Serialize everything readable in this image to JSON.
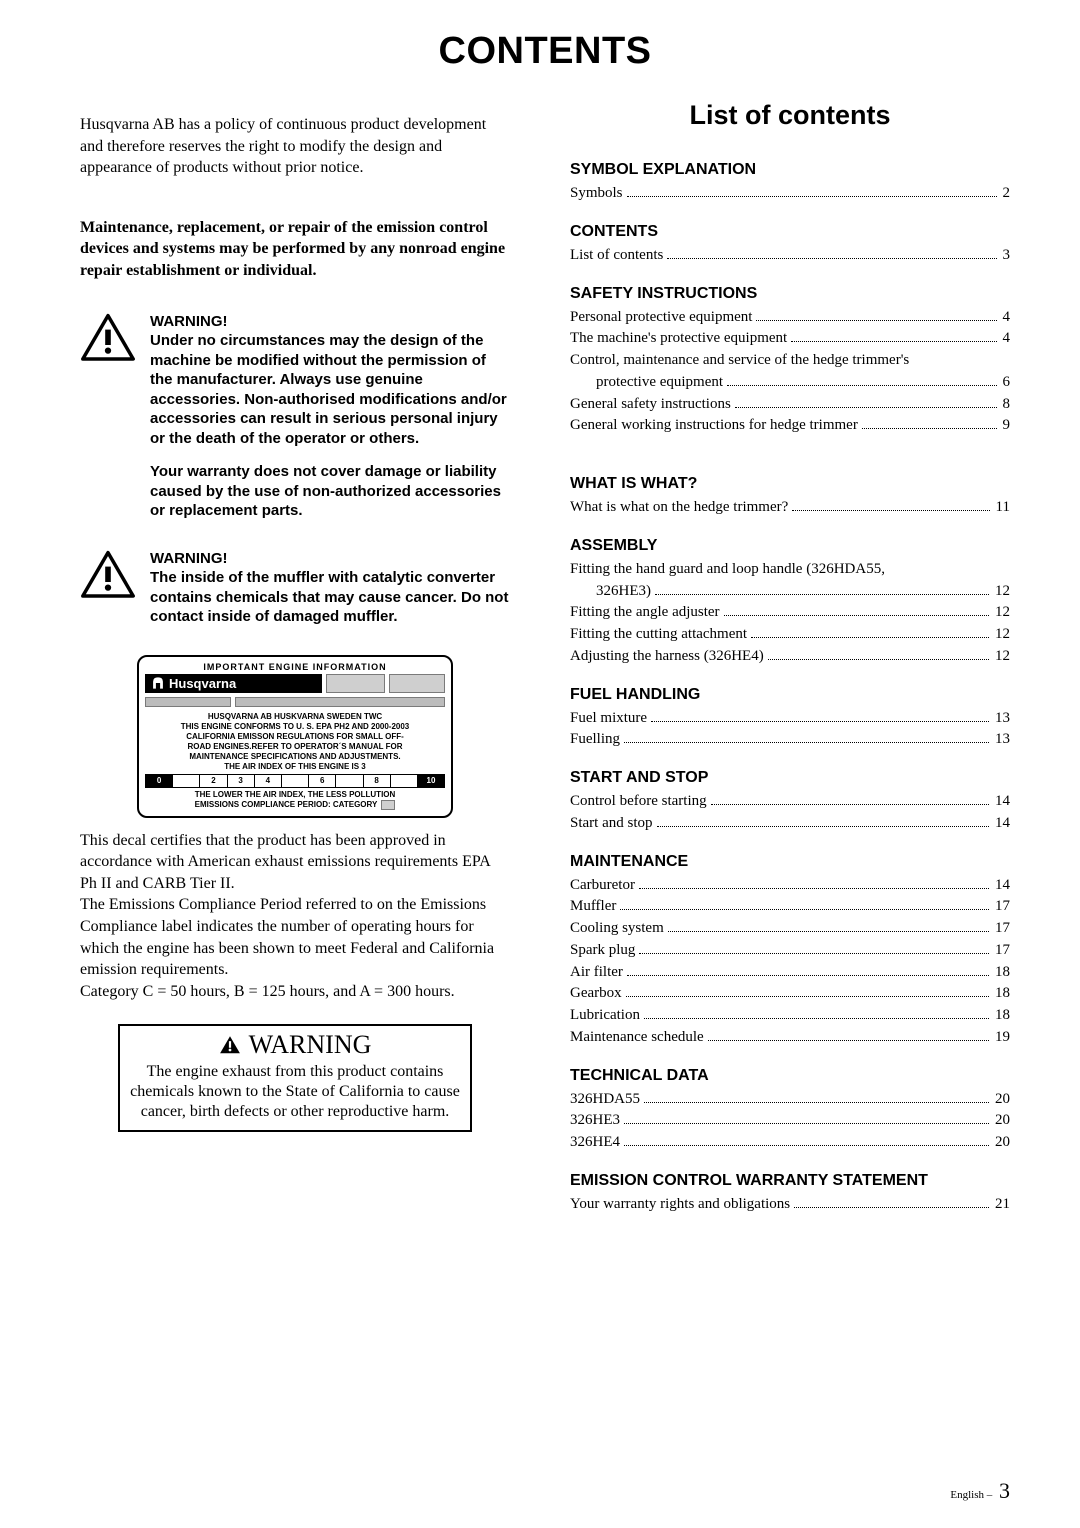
{
  "page_title": "CONTENTS",
  "intro": "Husqvarna AB has a policy of continuous product development and therefore reserves the right to modify the design and appearance of products without prior notice.",
  "maintenance_para": "Maintenance, replacement, or repair of the emission control devices and systems may be performed by any nonroad engine repair establishment or individual.",
  "warning1_title": "WARNING!",
  "warning1_body": "Under no circumstances may the design of the machine be modified without the permission of the manufacturer. Always use genuine accessories. Non-authorised modifications and/or accessories can result in serious personal injury or the death of the operator or others.",
  "warning1_sub": "Your warranty does not cover damage or liability caused by the use of non-authorized accessories or replacement parts.",
  "warning2_title": "WARNING!",
  "warning2_body": "The inside of the muffler with catalytic converter contains chemicals that may cause cancer. Do not contact inside of damaged muffler.",
  "engine_box": {
    "header": "IMPORTANT  ENGINE  INFORMATION",
    "brand": "Husqvarna",
    "line1": "HUSQVARNA  AB  HUSKVARNA  SWEDEN    TWC",
    "line2": "THIS ENGINE CONFORMS TO U. S. EPA PH2 AND 2000-2003",
    "line3": "CALIFORNIA EMISSON REGULATIONS FOR SMALL OFF-",
    "line4": "ROAD ENGINES.REFER TO OPERATOR´S MANUAL FOR",
    "line5": "MAINTENANCE SPECIFICATIONS AND ADJUSTMENTS.",
    "line6": "THE AIR INDEX OF THIS ENGINE IS 3",
    "gauge": [
      "0",
      "",
      "2",
      "3",
      "4",
      "",
      "6",
      "",
      "8",
      "",
      "10"
    ],
    "line7": "THE LOWER THE AIR INDEX, THE LESS POLLUTION",
    "line8": "EMISSIONS COMPLIANCE PERIOD: CATEGORY"
  },
  "decal_para": "This decal certifies that the product has been approved in accordance with American exhaust emissions requirements EPA Ph II and CARB Tier II.\nThe Emissions Compliance Period referred to on the Emissions Compliance label indicates the number of operating hours for which the engine has been shown to meet Federal and California emission requirements.\nCategory C = 50 hours, B = 125 hours, and A = 300 hours.",
  "prop65_title": "WARNING",
  "prop65_body": "The engine exhaust from this product contains chemicals known to the State of California to cause cancer, birth defects or other reproductive harm.",
  "list_heading": "List of contents",
  "sections": [
    {
      "head": "SYMBOL EXPLANATION",
      "rows": [
        {
          "label": "Symbols",
          "page": "2"
        }
      ]
    },
    {
      "head": "CONTENTS",
      "rows": [
        {
          "label": "List of contents",
          "page": "3"
        }
      ]
    },
    {
      "head": "SAFETY INSTRUCTIONS",
      "rows": [
        {
          "label": "Personal protective equipment",
          "page": "4"
        },
        {
          "label": "The machine's protective equipment",
          "page": "4"
        },
        {
          "wrap": "Control, maintenance and service of the hedge trimmer's",
          "label": "protective equipment",
          "page": "6",
          "indent": true
        },
        {
          "label": "General safety instructions",
          "page": "8"
        },
        {
          "label": "General working instructions for hedge trimmer",
          "page": "9"
        }
      ],
      "gap_after": true
    },
    {
      "head": "WHAT IS WHAT?",
      "rows": [
        {
          "label": "What is what on the hedge trimmer?",
          "page": "11"
        }
      ]
    },
    {
      "head": "ASSEMBLY",
      "rows": [
        {
          "wrap": "Fitting the hand guard and loop handle (326HDA55,",
          "label": "326HE3)",
          "page": "12",
          "indent": true
        },
        {
          "label": "Fitting the angle adjuster",
          "page": "12"
        },
        {
          "label": "Fitting the cutting attachment",
          "page": "12"
        },
        {
          "label": "Adjusting the harness (326HE4)",
          "page": "12"
        }
      ]
    },
    {
      "head": "FUEL HANDLING",
      "rows": [
        {
          "label": "Fuel mixture",
          "page": "13"
        },
        {
          "label": "Fuelling",
          "page": "13"
        }
      ]
    },
    {
      "head": "START AND STOP",
      "rows": [
        {
          "label": "Control before starting",
          "page": "14"
        },
        {
          "label": "Start and stop",
          "page": "14"
        }
      ]
    },
    {
      "head": "MAINTENANCE",
      "rows": [
        {
          "label": "Carburetor",
          "page": "14"
        },
        {
          "label": "Muffler",
          "page": "17"
        },
        {
          "label": "Cooling system",
          "page": "17"
        },
        {
          "label": "Spark plug",
          "page": "17"
        },
        {
          "label": "Air filter",
          "page": "18"
        },
        {
          "label": "Gearbox",
          "page": "18"
        },
        {
          "label": "Lubrication",
          "page": "18"
        },
        {
          "label": "Maintenance schedule",
          "page": "19"
        }
      ]
    },
    {
      "head": "TECHNICAL DATA",
      "rows": [
        {
          "label": "326HDA55",
          "page": "20"
        },
        {
          "label": "326HE3",
          "page": "20"
        },
        {
          "label": "326HE4",
          "page": "20"
        }
      ]
    },
    {
      "head": "EMISSION CONTROL WARRANTY STATEMENT",
      "rows": [
        {
          "label": "Your warranty rights and obligations",
          "page": "21"
        }
      ]
    }
  ],
  "page_footer_lang": "English",
  "page_footer_sep": " – ",
  "page_footer_num": "3"
}
